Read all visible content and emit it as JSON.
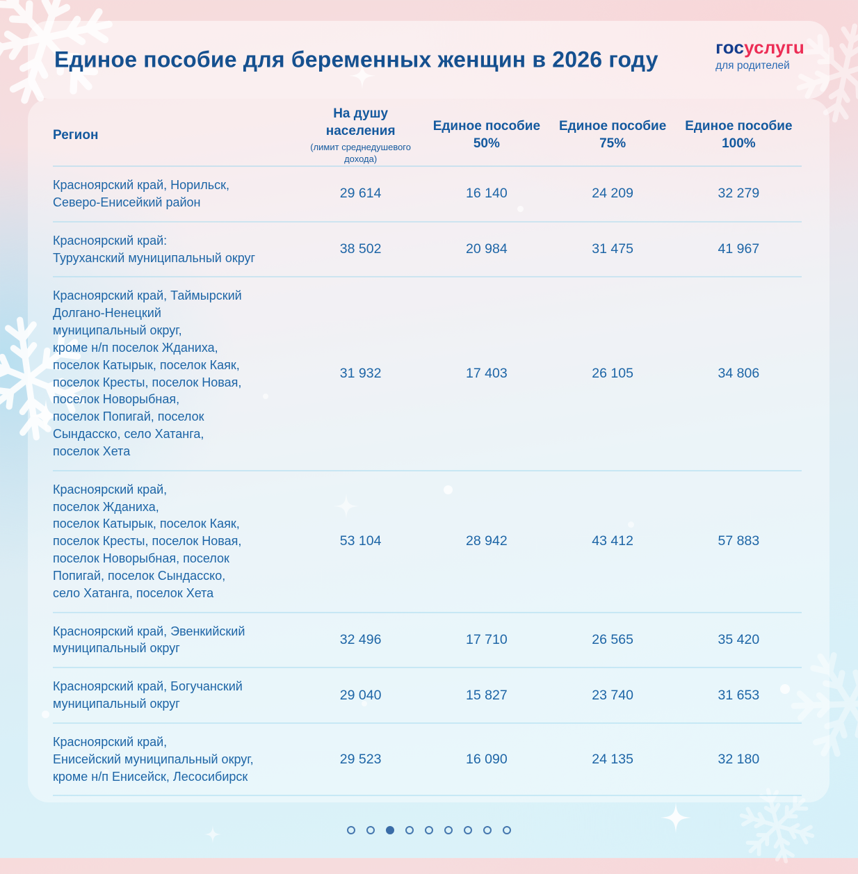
{
  "header": {
    "title": "Единое пособие для беременных женщин в 2026 году",
    "logo": {
      "part_blue": "гос",
      "part_red": "услугu",
      "subtitle": "для родителей",
      "blue_color": "#143d8d",
      "red_color": "#ec2d55"
    }
  },
  "table": {
    "columns": {
      "region": "Регион",
      "per_capita": {
        "title": "На душу населения",
        "note": "(лимит среднедушевого дохода)"
      },
      "b50": {
        "line1": "Единое пособие",
        "line2": "50%"
      },
      "b75": {
        "line1": "Единое пособие",
        "line2": "75%"
      },
      "b100": {
        "line1": "Единое пособие",
        "line2": "100%"
      }
    },
    "rows": [
      {
        "region": "Красноярский край, Норильск,\nСеверо-Енисейкий район",
        "per_capita": "29 614",
        "b50": "16 140",
        "b75": "24 209",
        "b100": "32 279"
      },
      {
        "region": "Красноярский край:\nТуруханский муниципальный округ",
        "per_capita": "38 502",
        "b50": "20 984",
        "b75": "31 475",
        "b100": "41 967"
      },
      {
        "region": "Красноярский край, Таймырский\nДолгано-Ненецкий\nмуниципальный округ,\nкроме н/п поселок Жданиха,\nпоселок Катырык, поселок Каяк,\nпоселок Кресты, поселок Новая,\nпоселок Новорыбная,\nпоселок Попигай, поселок\nСындасско, село Хатанга,\nпоселок Хета",
        "per_capita": "31 932",
        "b50": "17 403",
        "b75": "26 105",
        "b100": "34 806"
      },
      {
        "region": "Красноярский край,\nпоселок Жданиха,\nпоселок Катырык, поселок Каяк,\nпоселок Кресты, поселок Новая,\nпоселок Новорыбная, поселок\nПопигай, поселок Сындасско,\nсело Хатанга, поселок Хета",
        "per_capita": "53 104",
        "b50": "28 942",
        "b75": "43 412",
        "b100": "57 883"
      },
      {
        "region": "Красноярский край, Эвенкийский\nмуниципальный округ",
        "per_capita": "32 496",
        "b50": "17 710",
        "b75": "26 565",
        "b100": "35 420"
      },
      {
        "region": "Красноярский край, Богучанский\nмуниципальный округ",
        "per_capita": "29 040",
        "b50": "15 827",
        "b75": "23 740",
        "b100": "31 653"
      },
      {
        "region": "Красноярский край,\nЕнисейский муниципальный округ,\nкроме н/п Енисейск, Лесосибирск",
        "per_capita": "29 523",
        "b50": "16 090",
        "b75": "24 135",
        "b100": "32 180"
      }
    ]
  },
  "pagination": {
    "total": 9,
    "active_index": 2
  },
  "theme": {
    "title_color": "#15508f",
    "body_text_color": "#1d65a6",
    "divider_color": "#9ed6ee",
    "dot_color": "#3a6ca7",
    "bg_top": "#f7dbdb",
    "bg_bottom": "#dcf3f9"
  }
}
